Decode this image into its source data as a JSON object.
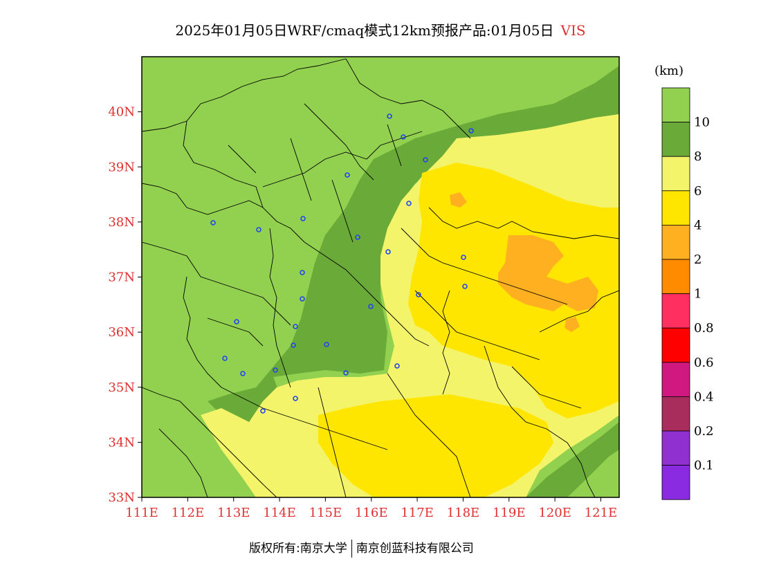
{
  "title": {
    "text": "2025年01月05日WRF/cmaq模式12km预报产品:01月05日",
    "variable": "VIS",
    "variable_color": "#e03030"
  },
  "map": {
    "lon_range": [
      111,
      121.4
    ],
    "lat_range": [
      33,
      41
    ],
    "lat_ticks": [
      "33N",
      "34N",
      "35N",
      "36N",
      "37N",
      "38N",
      "39N",
      "40N"
    ],
    "lon_ticks": [
      "111E",
      "112E",
      "113E",
      "114E",
      "115E",
      "116E",
      "117E",
      "118E",
      "119E",
      "120E",
      "121E"
    ],
    "tick_label_color": "#e03030",
    "city_marker_color": "#2244ee"
  },
  "colorbar": {
    "unit": "(km)",
    "colors": [
      "#92d050",
      "#6aaa38",
      "#f4f46a",
      "#ffe600",
      "#ffb020",
      "#ff8c00",
      "#ff3060",
      "#ff0000",
      "#d01880",
      "#a82c5c",
      "#9030d0",
      "#8a2be2"
    ],
    "labels": [
      "10",
      "8",
      "6",
      "4",
      "2",
      "1",
      "0.8",
      "0.6",
      "0.4",
      "0.2",
      "0.1"
    ]
  },
  "credit": {
    "left": "版权所有:南京大学",
    "right": "南京创蓝科技有限公司"
  }
}
